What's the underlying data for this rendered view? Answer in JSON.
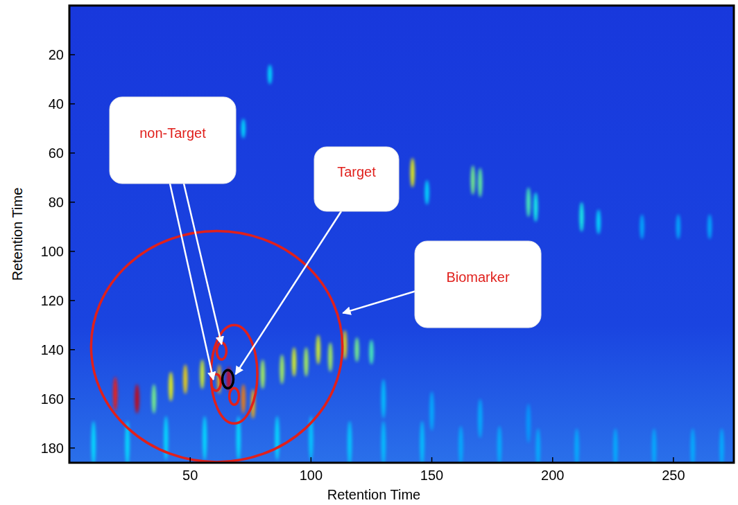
{
  "chart_data": {
    "type": "heatmap",
    "x_label": "Retention Time",
    "y_label": "Retention Time",
    "xlim": [
      0,
      275
    ],
    "ylim": [
      186,
      0
    ],
    "xticks": [
      50,
      100,
      150,
      200,
      250
    ],
    "yticks": [
      20,
      40,
      60,
      80,
      100,
      120,
      140,
      160,
      180
    ],
    "zlim": [
      0,
      1
    ],
    "peaks": [
      {
        "x": 83,
        "y": 28,
        "z": 0.35,
        "h": 8
      },
      {
        "x": 72,
        "y": 50,
        "z": 0.35,
        "h": 8
      },
      {
        "x": 142,
        "y": 68,
        "z": 0.62,
        "h": 12
      },
      {
        "x": 167,
        "y": 71,
        "z": 0.5,
        "h": 12
      },
      {
        "x": 170,
        "y": 72,
        "z": 0.48,
        "h": 12
      },
      {
        "x": 190,
        "y": 80,
        "z": 0.45,
        "h": 12
      },
      {
        "x": 193,
        "y": 82,
        "z": 0.4,
        "h": 12
      },
      {
        "x": 212,
        "y": 86,
        "z": 0.4,
        "h": 12
      },
      {
        "x": 219,
        "y": 88,
        "z": 0.35,
        "h": 10
      },
      {
        "x": 148,
        "y": 76,
        "z": 0.35,
        "h": 10
      },
      {
        "x": 237,
        "y": 90,
        "z": 0.3,
        "h": 10
      },
      {
        "x": 252,
        "y": 90,
        "z": 0.3,
        "h": 10
      },
      {
        "x": 265,
        "y": 90,
        "z": 0.3,
        "h": 10
      },
      {
        "x": 114,
        "y": 138,
        "z": 0.66,
        "h": 12
      },
      {
        "x": 119,
        "y": 140,
        "z": 0.5,
        "h": 10
      },
      {
        "x": 125,
        "y": 141,
        "z": 0.45,
        "h": 10
      },
      {
        "x": 108,
        "y": 143,
        "z": 0.55,
        "h": 12
      },
      {
        "x": 103,
        "y": 140,
        "z": 0.6,
        "h": 12
      },
      {
        "x": 98,
        "y": 145,
        "z": 0.55,
        "h": 12
      },
      {
        "x": 93,
        "y": 145,
        "z": 0.6,
        "h": 12
      },
      {
        "x": 88,
        "y": 148,
        "z": 0.55,
        "h": 12
      },
      {
        "x": 80,
        "y": 150,
        "z": 0.55,
        "h": 12
      },
      {
        "x": 19,
        "y": 158,
        "z": 0.85,
        "h": 14
      },
      {
        "x": 28,
        "y": 160,
        "z": 0.92,
        "h": 12
      },
      {
        "x": 35,
        "y": 160,
        "z": 0.5,
        "h": 12
      },
      {
        "x": 42,
        "y": 155,
        "z": 0.62,
        "h": 12
      },
      {
        "x": 48,
        "y": 152,
        "z": 0.66,
        "h": 12
      },
      {
        "x": 55,
        "y": 150,
        "z": 0.6,
        "h": 12
      },
      {
        "x": 62,
        "y": 152,
        "z": 0.7,
        "h": 12
      },
      {
        "x": 66,
        "y": 152,
        "z": 0.9,
        "h": 10
      },
      {
        "x": 72,
        "y": 160,
        "z": 0.75,
        "h": 12
      },
      {
        "x": 76,
        "y": 162,
        "z": 0.7,
        "h": 12
      },
      {
        "x": 10,
        "y": 178,
        "z": 0.35,
        "h": 18
      },
      {
        "x": 24,
        "y": 178,
        "z": 0.35,
        "h": 18
      },
      {
        "x": 40,
        "y": 176,
        "z": 0.35,
        "h": 18
      },
      {
        "x": 56,
        "y": 176,
        "z": 0.35,
        "h": 18
      },
      {
        "x": 70,
        "y": 176,
        "z": 0.35,
        "h": 18
      },
      {
        "x": 86,
        "y": 176,
        "z": 0.35,
        "h": 18
      },
      {
        "x": 100,
        "y": 176,
        "z": 0.33,
        "h": 18
      },
      {
        "x": 116,
        "y": 178,
        "z": 0.33,
        "h": 18
      },
      {
        "x": 130,
        "y": 178,
        "z": 0.32,
        "h": 18
      },
      {
        "x": 146,
        "y": 178,
        "z": 0.32,
        "h": 18
      },
      {
        "x": 162,
        "y": 179,
        "z": 0.3,
        "h": 16
      },
      {
        "x": 178,
        "y": 179,
        "z": 0.3,
        "h": 16
      },
      {
        "x": 194,
        "y": 180,
        "z": 0.3,
        "h": 16
      },
      {
        "x": 210,
        "y": 180,
        "z": 0.3,
        "h": 16
      },
      {
        "x": 226,
        "y": 180,
        "z": 0.3,
        "h": 16
      },
      {
        "x": 242,
        "y": 180,
        "z": 0.3,
        "h": 16
      },
      {
        "x": 258,
        "y": 180,
        "z": 0.3,
        "h": 16
      },
      {
        "x": 270,
        "y": 180,
        "z": 0.3,
        "h": 16
      },
      {
        "x": 130,
        "y": 160,
        "z": 0.32,
        "h": 16
      },
      {
        "x": 150,
        "y": 165,
        "z": 0.3,
        "h": 16
      },
      {
        "x": 170,
        "y": 168,
        "z": 0.3,
        "h": 16
      },
      {
        "x": 190,
        "y": 170,
        "z": 0.28,
        "h": 16
      }
    ],
    "regions": [
      {
        "x": 61,
        "y": 138.7,
        "rx": 52,
        "ry": 47,
        "color": "#e0201c"
      },
      {
        "x": 68.2,
        "y": 150,
        "rx": 9.6,
        "ry": 20,
        "color": "#e0201c"
      },
      {
        "x": 63,
        "y": 140.6,
        "rx": 2,
        "ry": 3.4,
        "color": "#e0201c"
      },
      {
        "x": 60.7,
        "y": 153.3,
        "rx": 2,
        "ry": 3.4,
        "color": "#e0201c"
      },
      {
        "x": 68.2,
        "y": 159,
        "rx": 2,
        "ry": 3.4,
        "color": "#e0201c"
      },
      {
        "x": 65.6,
        "y": 152,
        "rx": 2.3,
        "ry": 3.7,
        "color": "#000000"
      }
    ],
    "annotations": [
      {
        "text": "non-Target",
        "points": [
          {
            "x": 63,
            "y": 137.8
          },
          {
            "x": 59.6,
            "y": 152.2
          }
        ]
      },
      {
        "text": "Target",
        "points": [
          {
            "x": 68.8,
            "y": 150
          }
        ]
      },
      {
        "text": "Biomarker",
        "points": [
          {
            "x": 113.2,
            "y": 125.1
          }
        ]
      }
    ]
  }
}
